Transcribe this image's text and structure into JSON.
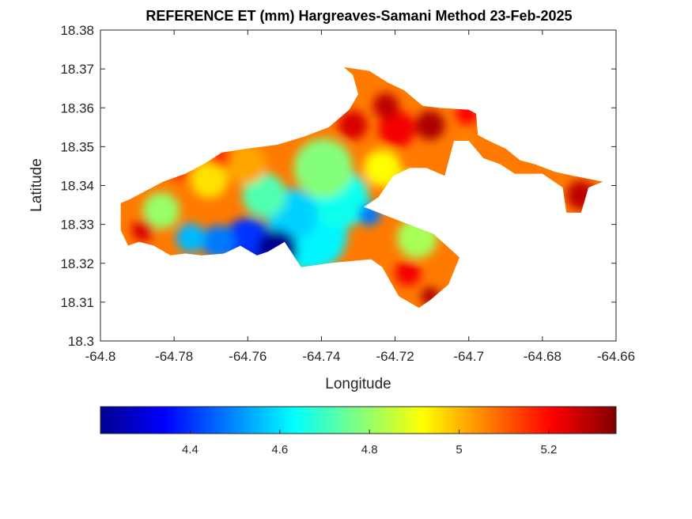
{
  "chart_data": {
    "type": "heatmap",
    "title": "REFERENCE ET (mm) Hargreaves-Samani Method  23-Feb-2025",
    "xlabel": "Longitude",
    "ylabel": "Latitude",
    "xlim": [
      -64.8,
      -64.66
    ],
    "ylim": [
      18.3,
      18.38
    ],
    "x_ticks": [
      "-64.8",
      "-64.78",
      "-64.76",
      "-64.74",
      "-64.72",
      "-64.7",
      "-64.68",
      "-64.66"
    ],
    "y_ticks": [
      "18.3",
      "18.31",
      "18.32",
      "18.33",
      "18.34",
      "18.35",
      "18.36",
      "18.37",
      "18.38"
    ],
    "grid": false,
    "colormap": "jet",
    "colorbar": {
      "location": "southoutside",
      "clim": [
        4.2,
        5.35
      ],
      "ticks": [
        "4.4",
        "4.6",
        "4.8",
        "5",
        "5.2"
      ]
    },
    "region_outline": [
      [
        -64.792,
        18.3365
      ],
      [
        -64.788,
        18.3385
      ],
      [
        -64.783,
        18.341
      ],
      [
        -64.777,
        18.343
      ],
      [
        -64.772,
        18.3455
      ],
      [
        -64.767,
        18.3485
      ],
      [
        -64.76,
        18.3495
      ],
      [
        -64.752,
        18.3505
      ],
      [
        -64.745,
        18.3525
      ],
      [
        -64.738,
        18.355
      ],
      [
        -64.7325,
        18.3595
      ],
      [
        -64.73,
        18.3635
      ],
      [
        -64.7315,
        18.3685
      ],
      [
        -64.734,
        18.3705
      ],
      [
        -64.727,
        18.3695
      ],
      [
        -64.722,
        18.3665
      ],
      [
        -64.7175,
        18.3645
      ],
      [
        -64.7125,
        18.3605
      ],
      [
        -64.708,
        18.36
      ],
      [
        -64.7,
        18.3595
      ],
      [
        -64.698,
        18.3585
      ],
      [
        -64.6975,
        18.353
      ],
      [
        -64.6945,
        18.3515
      ],
      [
        -64.69,
        18.3495
      ],
      [
        -64.686,
        18.3465
      ],
      [
        -64.682,
        18.3455
      ],
      [
        -64.6765,
        18.3435
      ],
      [
        -64.6715,
        18.3425
      ],
      [
        -64.6635,
        18.341
      ],
      [
        -64.6675,
        18.3395
      ],
      [
        -64.6695,
        18.333
      ],
      [
        -64.6735,
        18.333
      ],
      [
        -64.6745,
        18.3395
      ],
      [
        -64.68,
        18.343
      ],
      [
        -64.6875,
        18.343
      ],
      [
        -64.6915,
        18.3455
      ],
      [
        -64.696,
        18.347
      ],
      [
        -64.7,
        18.3515
      ],
      [
        -64.704,
        18.3515
      ],
      [
        -64.7065,
        18.3425
      ],
      [
        -64.7115,
        18.3445
      ],
      [
        -64.716,
        18.3445
      ],
      [
        -64.7205,
        18.3425
      ],
      [
        -64.7245,
        18.337
      ],
      [
        -64.7285,
        18.3345
      ],
      [
        -64.7095,
        18.3275
      ],
      [
        -64.7025,
        18.3215
      ],
      [
        -64.7055,
        18.3145
      ],
      [
        -64.7105,
        18.3105
      ],
      [
        -64.7135,
        18.3085
      ],
      [
        -64.719,
        18.3115
      ],
      [
        -64.7235,
        18.319
      ],
      [
        -64.7265,
        18.321
      ],
      [
        -64.738,
        18.32
      ],
      [
        -64.7455,
        18.319
      ],
      [
        -64.75,
        18.3255
      ],
      [
        -64.7545,
        18.323
      ],
      [
        -64.7575,
        18.322
      ],
      [
        -64.762,
        18.3245
      ],
      [
        -64.7665,
        18.3225
      ],
      [
        -64.7725,
        18.322
      ],
      [
        -64.777,
        18.3225
      ],
      [
        -64.781,
        18.322
      ],
      [
        -64.7855,
        18.3245
      ],
      [
        -64.7895,
        18.3255
      ],
      [
        -64.7925,
        18.3245
      ],
      [
        -64.7945,
        18.3285
      ],
      [
        -64.7945,
        18.3355
      ]
    ],
    "value_field": [
      {
        "lon": -64.752,
        "lat": 18.3235,
        "et": 4.22,
        "radius": 0.0055
      },
      {
        "lon": -64.76,
        "lat": 18.3255,
        "et": 4.4,
        "radius": 0.0065
      },
      {
        "lon": -64.768,
        "lat": 18.3255,
        "et": 4.48,
        "radius": 0.0045
      },
      {
        "lon": -64.7755,
        "lat": 18.3265,
        "et": 4.55,
        "radius": 0.004
      },
      {
        "lon": -64.743,
        "lat": 18.3275,
        "et": 4.62,
        "radius": 0.01
      },
      {
        "lon": -64.727,
        "lat": 18.3325,
        "et": 4.48,
        "radius": 0.003
      },
      {
        "lon": -64.735,
        "lat": 18.3365,
        "et": 4.65,
        "radius": 0.008
      },
      {
        "lon": -64.748,
        "lat": 18.3325,
        "et": 4.58,
        "radius": 0.007
      },
      {
        "lon": -64.7395,
        "lat": 18.3445,
        "et": 4.78,
        "radius": 0.008
      },
      {
        "lon": -64.7555,
        "lat": 18.3375,
        "et": 4.72,
        "radius": 0.006
      },
      {
        "lon": -64.7835,
        "lat": 18.3335,
        "et": 4.8,
        "radius": 0.005
      },
      {
        "lon": -64.714,
        "lat": 18.3265,
        "et": 4.82,
        "radius": 0.0055
      },
      {
        "lon": -64.7705,
        "lat": 18.3415,
        "et": 4.95,
        "radius": 0.005
      },
      {
        "lon": -64.7175,
        "lat": 18.3395,
        "et": 4.95,
        "radius": 0.0045
      },
      {
        "lon": -64.7235,
        "lat": 18.3445,
        "et": 4.92,
        "radius": 0.005
      },
      {
        "lon": -64.7605,
        "lat": 18.3455,
        "et": 5.02,
        "radius": 0.0055
      },
      {
        "lon": -64.7885,
        "lat": 18.3285,
        "et": 5.25,
        "radius": 0.003
      },
      {
        "lon": -64.7315,
        "lat": 18.3555,
        "et": 5.25,
        "radius": 0.004
      },
      {
        "lon": -64.7195,
        "lat": 18.3545,
        "et": 5.22,
        "radius": 0.005
      },
      {
        "lon": -64.7225,
        "lat": 18.3605,
        "et": 5.28,
        "radius": 0.0035
      },
      {
        "lon": -64.7105,
        "lat": 18.3555,
        "et": 5.3,
        "radius": 0.004
      },
      {
        "lon": -64.7005,
        "lat": 18.3585,
        "et": 5.2,
        "radius": 0.003
      },
      {
        "lon": -64.7165,
        "lat": 18.3175,
        "et": 5.22,
        "radius": 0.0035
      },
      {
        "lon": -64.7105,
        "lat": 18.3115,
        "et": 5.3,
        "radius": 0.0025
      },
      {
        "lon": -64.6695,
        "lat": 18.3375,
        "et": 5.28,
        "radius": 0.004
      },
      {
        "lon": -64.7015,
        "lat": 18.3505,
        "et": 5.05,
        "radius": 0.002
      },
      {
        "lon": -64.7785,
        "lat": 18.344,
        "et": 5.15,
        "radius": 0.003
      },
      {
        "lon": -64.7675,
        "lat": 18.3475,
        "et": 5.15,
        "radius": 0.003
      }
    ]
  }
}
